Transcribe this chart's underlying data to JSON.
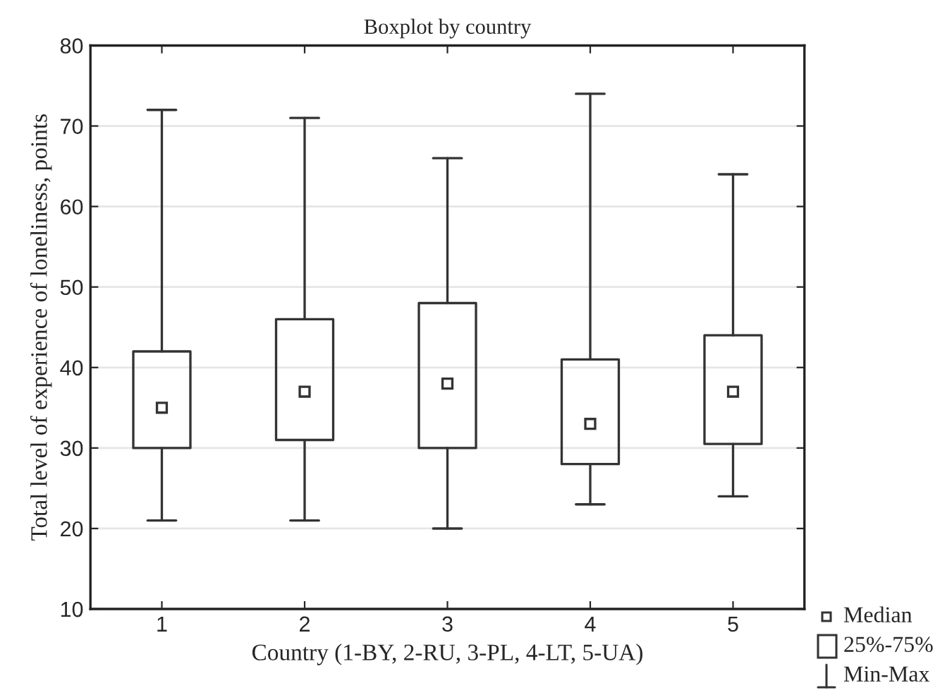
{
  "chart_data": {
    "type": "box",
    "title": "Boxplot by country",
    "xlabel": "Country (1-BY, 2-RU, 3-PL, 4-LT, 5-UA)",
    "ylabel": "Total level of experience of loneliness, points",
    "categories": [
      "1",
      "2",
      "3",
      "4",
      "5"
    ],
    "boxes": [
      {
        "low": 21,
        "q1": 30,
        "median": 35,
        "q3": 42,
        "high": 72
      },
      {
        "low": 21,
        "q1": 31,
        "median": 37,
        "q3": 46,
        "high": 71
      },
      {
        "low": 20,
        "q1": 30,
        "median": 38,
        "q3": 48,
        "high": 66
      },
      {
        "low": 23,
        "q1": 28,
        "median": 33,
        "q3": 41,
        "high": 74
      },
      {
        "low": 24,
        "q1": 30.5,
        "median": 37,
        "q3": 44,
        "high": 64
      }
    ],
    "annotations": [
      "Median",
      "25%-75%",
      "Min-Max"
    ],
    "color": "#333333",
    "ylim": [
      10,
      80
    ],
    "yticks": [
      10,
      20,
      30,
      40,
      50,
      60,
      70,
      80
    ],
    "grid": "y",
    "marker": "square"
  }
}
